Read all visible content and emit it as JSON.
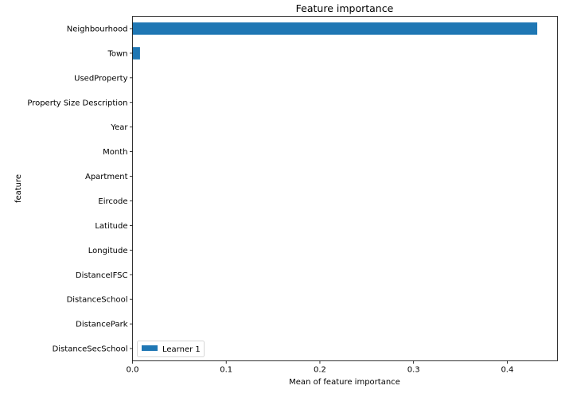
{
  "chart_data": {
    "type": "bar",
    "orientation": "horizontal",
    "title": "Feature importance",
    "xlabel": "Mean of feature importance",
    "ylabel": "feature",
    "categories": [
      "Neighbourhood",
      "Town",
      "UsedProperty",
      "Property Size Description",
      "Year",
      "Month",
      "Apartment",
      "Eircode",
      "Latitude",
      "Longitude",
      "DistanceIFSC",
      "DistanceSchool",
      "DistancePark",
      "DistanceSecSchool"
    ],
    "series": [
      {
        "name": "Learner 1",
        "color": "#1f77b4",
        "values": [
          0.432,
          0.008,
          0,
          0,
          0,
          0,
          0,
          0,
          0,
          0,
          0,
          0,
          0,
          0
        ]
      }
    ],
    "xlim": [
      0,
      0.4536
    ],
    "xticks": [
      0,
      0.1,
      0.2,
      0.3,
      0.4
    ],
    "xtick_labels": [
      "0.0",
      "0.1",
      "0.2",
      "0.3",
      "0.4"
    ],
    "grid": false,
    "legend_position": "lower-left"
  }
}
